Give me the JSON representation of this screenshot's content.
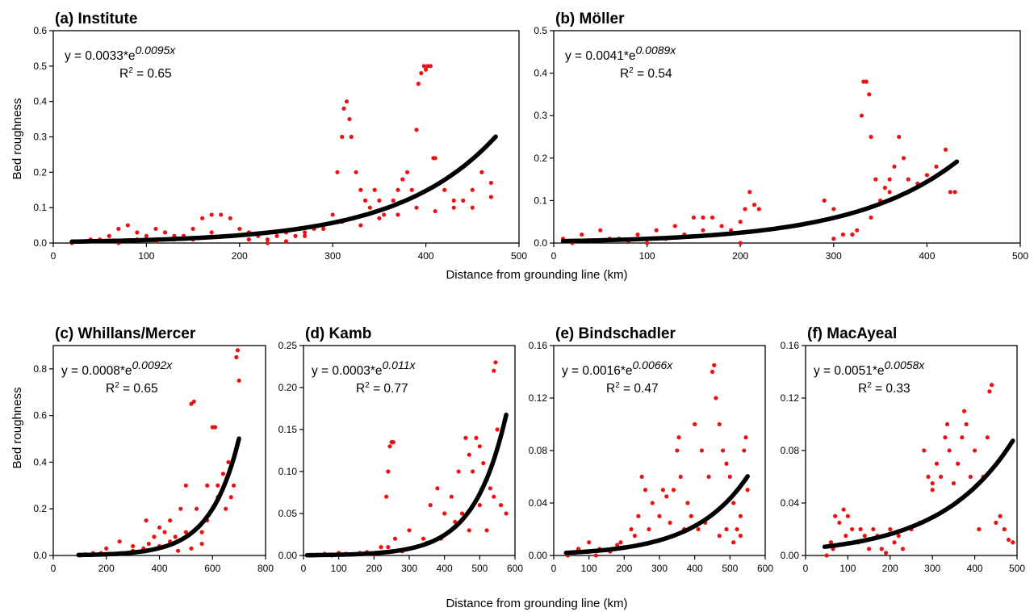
{
  "figure": {
    "xlabel_top": "Distance from grounding line (km)",
    "xlabel_bottom": "Distance from grounding line (km)",
    "ylabel_top": "Bed roughness",
    "ylabel_bottom": "Bed roughness"
  },
  "colors": {
    "points": "#ee1111",
    "fit": "#000000"
  },
  "chart_data": [
    {
      "type": "scatter",
      "title": "(a) Institute",
      "xlim": [
        0,
        500
      ],
      "ylim": [
        0,
        0.6
      ],
      "xticks": [
        0,
        100,
        200,
        300,
        400,
        500
      ],
      "yticks": [
        0.0,
        0.1,
        0.2,
        0.3,
        0.4,
        0.5,
        0.6
      ],
      "yfmt": 1,
      "equation": {
        "prefix": "y = 0.0033*e",
        "exponent": "0.0095x"
      },
      "r2": {
        "prefix": "R",
        "sup": "2",
        "suffix": " = 0.65"
      },
      "fit": {
        "a": 0.0033,
        "b": 0.0095,
        "x0": 20,
        "x1": 475
      },
      "series": [
        {
          "x": [
            20,
            40,
            60,
            70,
            80,
            90,
            100,
            110,
            120,
            130,
            140,
            150,
            160,
            170,
            180,
            190,
            200,
            210,
            220,
            230,
            240,
            250,
            260,
            270,
            280,
            290,
            300,
            305,
            310,
            312,
            315,
            318,
            320,
            325,
            330,
            335,
            340,
            345,
            350,
            355,
            360,
            365,
            370,
            375,
            380,
            385,
            390,
            392,
            395,
            398,
            400,
            402,
            405,
            408,
            410,
            420,
            430,
            440,
            450,
            460,
            470
          ],
          "y": [
            0.0,
            0.01,
            0.02,
            0.04,
            0.05,
            0.03,
            0.02,
            0.04,
            0.03,
            0.01,
            0.02,
            0.04,
            0.07,
            0.08,
            0.08,
            0.07,
            0.04,
            0.03,
            0.02,
            0.01,
            0.02,
            0.03,
            0.02,
            0.03,
            0.04,
            0.05,
            0.08,
            0.2,
            0.3,
            0.38,
            0.4,
            0.35,
            0.3,
            0.2,
            0.15,
            0.12,
            0.1,
            0.15,
            0.12,
            0.08,
            0.1,
            0.12,
            0.15,
            0.18,
            0.2,
            0.15,
            0.32,
            0.45,
            0.48,
            0.5,
            0.49,
            0.5,
            0.5,
            0.24,
            0.24,
            0.15,
            0.1,
            0.12,
            0.15,
            0.2,
            0.17
          ]
        },
        {
          "x": [
            30,
            50,
            70,
            90,
            110,
            130,
            150,
            170,
            190,
            210,
            230,
            250,
            270,
            290,
            310,
            330,
            350,
            370,
            390,
            410,
            430,
            450,
            470
          ],
          "y": [
            0.005,
            0.01,
            0.0,
            0.01,
            0.005,
            0.02,
            0.01,
            0.03,
            0.02,
            0.01,
            0.0,
            0.005,
            0.02,
            0.04,
            0.06,
            0.05,
            0.07,
            0.08,
            0.1,
            0.09,
            0.12,
            0.1,
            0.13
          ]
        }
      ]
    },
    {
      "type": "scatter",
      "title": "(b) Möller",
      "xlim": [
        0,
        500
      ],
      "ylim": [
        0,
        0.5
      ],
      "xticks": [
        0,
        100,
        200,
        300,
        400,
        500
      ],
      "yticks": [
        0.0,
        0.1,
        0.2,
        0.3,
        0.4,
        0.5
      ],
      "yfmt": 1,
      "equation": {
        "prefix": "y = 0.0041*e",
        "exponent": "0.0089x"
      },
      "r2": {
        "prefix": "R",
        "sup": "2",
        "suffix": " = 0.54"
      },
      "fit": {
        "a": 0.0041,
        "b": 0.0089,
        "x0": 10,
        "x1": 432
      },
      "series": [
        {
          "x": [
            10,
            30,
            50,
            70,
            90,
            110,
            130,
            150,
            160,
            170,
            180,
            190,
            200,
            205,
            210,
            215,
            220,
            290,
            300,
            310,
            320,
            325,
            330,
            332,
            335,
            338,
            340,
            345,
            350,
            355,
            360,
            365,
            370,
            375,
            380,
            390,
            400,
            410,
            420,
            425,
            430
          ],
          "y": [
            0.01,
            0.02,
            0.03,
            0.01,
            0.02,
            0.03,
            0.04,
            0.06,
            0.06,
            0.06,
            0.04,
            0.03,
            0.05,
            0.08,
            0.12,
            0.09,
            0.08,
            0.1,
            0.08,
            0.02,
            0.02,
            0.03,
            0.3,
            0.38,
            0.38,
            0.35,
            0.25,
            0.15,
            0.1,
            0.13,
            0.15,
            0.18,
            0.25,
            0.2,
            0.15,
            0.14,
            0.16,
            0.18,
            0.22,
            0.12,
            0.12
          ]
        },
        {
          "x": [
            20,
            40,
            60,
            80,
            100,
            120,
            140,
            160,
            180,
            200,
            300,
            320,
            340,
            360
          ],
          "y": [
            0.0,
            0.005,
            0.01,
            0.005,
            0.0,
            0.01,
            0.02,
            0.03,
            0.02,
            0.0,
            0.01,
            0.02,
            0.06,
            0.12
          ]
        }
      ]
    },
    {
      "type": "scatter",
      "title": "(c) Whillans/Mercer",
      "xlim": [
        0,
        800
      ],
      "ylim": [
        0,
        0.9
      ],
      "xticks": [
        0,
        200,
        400,
        600,
        800
      ],
      "yticks": [
        0.0,
        0.2,
        0.4,
        0.6,
        0.8
      ],
      "yfmt": 1,
      "equation": {
        "prefix": "y = 0.0008*e",
        "exponent": "0.0092x"
      },
      "r2": {
        "prefix": "R",
        "sup": "2",
        "suffix": " = 0.65"
      },
      "fit": {
        "a": 0.0008,
        "b": 0.0092,
        "x0": 95,
        "x1": 700
      },
      "series": [
        {
          "x": [
            100,
            150,
            200,
            250,
            300,
            350,
            380,
            400,
            420,
            440,
            460,
            480,
            500,
            520,
            530,
            540,
            560,
            580,
            600,
            610,
            620,
            640,
            660,
            680,
            690,
            695,
            700
          ],
          "y": [
            0.0,
            0.01,
            0.03,
            0.06,
            0.04,
            0.15,
            0.08,
            0.12,
            0.1,
            0.15,
            0.08,
            0.2,
            0.3,
            0.65,
            0.66,
            0.2,
            0.1,
            0.15,
            0.55,
            0.55,
            0.3,
            0.35,
            0.4,
            0.3,
            0.85,
            0.88,
            0.75
          ]
        },
        {
          "x": [
            120,
            180,
            240,
            300,
            340,
            360,
            400,
            440,
            470,
            500,
            520,
            560,
            580,
            620,
            650,
            670
          ],
          "y": [
            0.005,
            0.01,
            0.005,
            0.02,
            0.03,
            0.05,
            0.04,
            0.06,
            0.02,
            0.1,
            0.03,
            0.05,
            0.3,
            0.25,
            0.2,
            0.25
          ]
        }
      ]
    },
    {
      "type": "scatter",
      "title": "(d) Kamb",
      "xlim": [
        0,
        600
      ],
      "ylim": [
        0,
        0.25
      ],
      "xticks": [
        0,
        100,
        200,
        300,
        400,
        500,
        600
      ],
      "yticks": [
        0.0,
        0.05,
        0.1,
        0.15,
        0.2,
        0.25
      ],
      "yfmt": 2,
      "equation": {
        "prefix": "y = 0.0003*e",
        "exponent": "0.011x"
      },
      "r2": {
        "prefix": "R",
        "sup": "2",
        "suffix": " = 0.77"
      },
      "fit": {
        "a": 0.0003,
        "b": 0.011,
        "x0": 10,
        "x1": 575
      },
      "series": [
        {
          "x": [
            20,
            60,
            100,
            140,
            180,
            220,
            235,
            240,
            245,
            250,
            255,
            260,
            300,
            340,
            360,
            380,
            400,
            420,
            440,
            460,
            470,
            480,
            490,
            500,
            510,
            520,
            530,
            540,
            545,
            550,
            560,
            575
          ],
          "y": [
            0.0,
            0.002,
            0.003,
            0.001,
            0.004,
            0.01,
            0.07,
            0.1,
            0.13,
            0.135,
            0.135,
            0.02,
            0.03,
            0.02,
            0.06,
            0.08,
            0.05,
            0.07,
            0.1,
            0.14,
            0.12,
            0.1,
            0.14,
            0.13,
            0.11,
            0.09,
            0.08,
            0.22,
            0.23,
            0.15,
            0.06,
            0.05
          ]
        },
        {
          "x": [
            40,
            80,
            120,
            160,
            200,
            240,
            280,
            320,
            350,
            390,
            430,
            450,
            470,
            500,
            520,
            540
          ],
          "y": [
            0.001,
            0.0,
            0.002,
            0.003,
            0.001,
            0.01,
            0.005,
            0.01,
            0.015,
            0.02,
            0.04,
            0.05,
            0.03,
            0.06,
            0.03,
            0.07
          ]
        }
      ]
    },
    {
      "type": "scatter",
      "title": "(e) Bindschadler",
      "xlim": [
        0,
        600
      ],
      "ylim": [
        0,
        0.16
      ],
      "xticks": [
        0,
        100,
        200,
        300,
        400,
        500,
        600
      ],
      "yticks": [
        0.0,
        0.04,
        0.08,
        0.12,
        0.16
      ],
      "yfmt": 2,
      "equation": {
        "prefix": "y = 0.0016*e",
        "exponent": "0.0066x"
      },
      "r2": {
        "prefix": "R",
        "sup": "2",
        "suffix": " = 0.47"
      },
      "fit": {
        "a": 0.0016,
        "b": 0.0066,
        "x0": 35,
        "x1": 550
      },
      "series": [
        {
          "x": [
            40,
            70,
            100,
            130,
            160,
            190,
            220,
            240,
            250,
            260,
            280,
            300,
            310,
            320,
            340,
            350,
            355,
            360,
            380,
            400,
            410,
            420,
            440,
            450,
            455,
            460,
            470,
            480,
            490,
            500,
            510,
            520,
            530,
            540,
            545,
            550
          ],
          "y": [
            0.0,
            0.005,
            0.01,
            0.005,
            0.003,
            0.01,
            0.02,
            0.03,
            0.06,
            0.05,
            0.04,
            0.03,
            0.05,
            0.045,
            0.05,
            0.08,
            0.09,
            0.06,
            0.04,
            0.1,
            0.02,
            0.08,
            0.06,
            0.14,
            0.145,
            0.12,
            0.1,
            0.08,
            0.07,
            0.06,
            0.04,
            0.02,
            0.03,
            0.08,
            0.09,
            0.05
          ]
        },
        {
          "x": [
            60,
            120,
            180,
            230,
            270,
            330,
            370,
            390,
            430,
            470,
            490,
            510,
            530
          ],
          "y": [
            0.002,
            0.0,
            0.008,
            0.015,
            0.02,
            0.025,
            0.02,
            0.03,
            0.025,
            0.015,
            0.02,
            0.01,
            0.015
          ]
        }
      ]
    },
    {
      "type": "scatter",
      "title": "(f) MacAyeal",
      "xlim": [
        0,
        500
      ],
      "ylim": [
        0,
        0.16
      ],
      "xticks": [
        0,
        100,
        200,
        300,
        400,
        500
      ],
      "yticks": [
        0.0,
        0.04,
        0.08,
        0.12,
        0.16
      ],
      "yfmt": 2,
      "equation": {
        "prefix": "y = 0.0051*e",
        "exponent": "0.0058x"
      },
      "r2": {
        "prefix": "R",
        "sup": "2",
        "suffix": " = 0.33"
      },
      "fit": {
        "a": 0.0051,
        "b": 0.0058,
        "x0": 45,
        "x1": 490
      },
      "series": [
        {
          "x": [
            50,
            60,
            70,
            80,
            90,
            100,
            110,
            120,
            130,
            140,
            160,
            180,
            200,
            220,
            280,
            290,
            300,
            310,
            320,
            330,
            335,
            340,
            360,
            370,
            375,
            380,
            400,
            420,
            430,
            435,
            440,
            460,
            480,
            490
          ],
          "y": [
            0.0,
            0.01,
            0.03,
            0.025,
            0.035,
            0.03,
            0.02,
            0.01,
            0.02,
            0.015,
            0.02,
            0.005,
            0.02,
            0.015,
            0.08,
            0.06,
            0.055,
            0.07,
            0.06,
            0.09,
            0.1,
            0.08,
            0.07,
            0.09,
            0.11,
            0.1,
            0.08,
            0.06,
            0.09,
            0.125,
            0.13,
            0.03,
            0.012,
            0.01
          ]
        },
        {
          "x": [
            65,
            95,
            125,
            150,
            170,
            190,
            210,
            230,
            250,
            270,
            300,
            350,
            390,
            410,
            450,
            470
          ],
          "y": [
            0.005,
            0.015,
            0.01,
            0.005,
            0.015,
            0.002,
            0.01,
            0.005,
            0.02,
            0.025,
            0.05,
            0.055,
            0.06,
            0.02,
            0.025,
            0.02
          ]
        }
      ]
    }
  ]
}
